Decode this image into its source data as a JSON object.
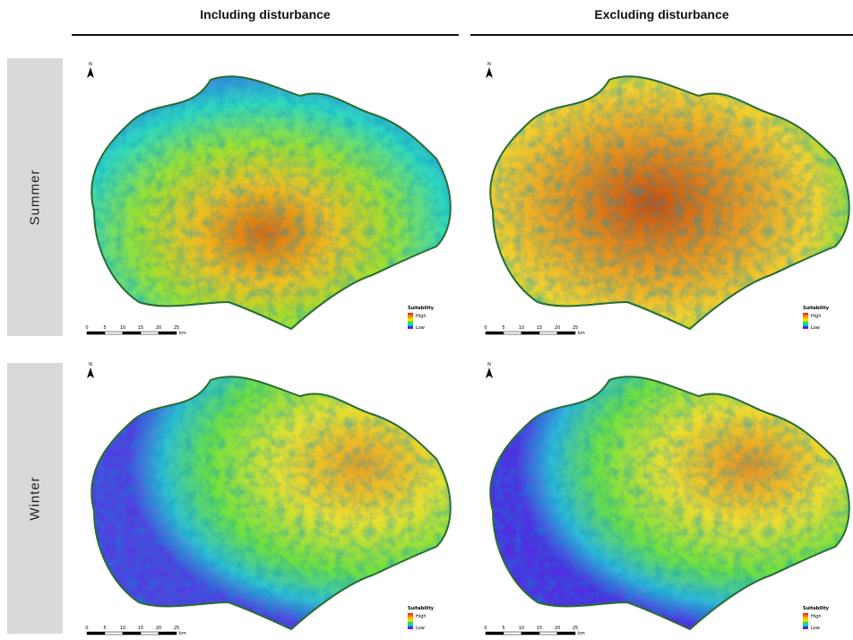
{
  "columns": [
    "Including disturbance",
    "Excluding disturbance"
  ],
  "rows": [
    "Summer",
    "Winter"
  ],
  "north": "N",
  "legend": {
    "title": "Suitability",
    "high": "High",
    "low": "Low"
  },
  "scale_bar": {
    "ticks": [
      "0",
      "5",
      "10",
      "15",
      "20",
      "25"
    ],
    "unit": "km"
  }
}
